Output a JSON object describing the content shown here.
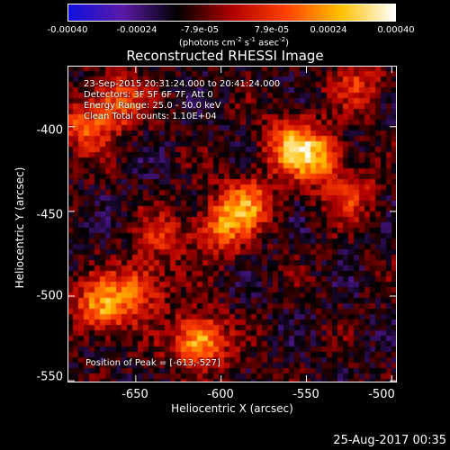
{
  "colorbar": {
    "ticks": [
      "-0.00040",
      "-0.00024",
      "-7.9e-05",
      "7.9e-05",
      "0.00024",
      "0.00040"
    ],
    "unit_text": "(photons cm",
    "unit_exp1": "-2",
    "unit_mid1": " s",
    "unit_exp2": "-1",
    "unit_mid2": " asec",
    "unit_exp3": "-2",
    "unit_end": ")"
  },
  "chart_data": {
    "type": "heatmap",
    "title": "Reconstructed RHESSI Image",
    "xlabel": "Heliocentric X (arcsec)",
    "ylabel": "Heliocentric Y (arcsec)",
    "xlim": [
      -690,
      -497
    ],
    "ylim": [
      -551,
      -364
    ],
    "xticks": [
      -650,
      -600,
      -550,
      -500
    ],
    "yticks": [
      -400,
      -450,
      -500,
      -550
    ],
    "clim": [
      -0.0004,
      0.0004
    ],
    "colormap": [
      "#1010e0",
      "#5a1aa8",
      "#000000",
      "#b00000",
      "#ff4000",
      "#ffc000",
      "#ffffff"
    ],
    "sources": [
      {
        "x": -613,
        "y": -527,
        "strength": 0.0004
      },
      {
        "x": -670,
        "y": -507,
        "strength": 0.00034
      },
      {
        "x": -648,
        "y": -495,
        "strength": 0.00025
      },
      {
        "x": -560,
        "y": -410,
        "strength": 0.00028
      },
      {
        "x": -585,
        "y": -445,
        "strength": 0.0003
      },
      {
        "x": -545,
        "y": -418,
        "strength": 0.00032
      },
      {
        "x": -660,
        "y": -385,
        "strength": 0.00027
      },
      {
        "x": -680,
        "y": -400,
        "strength": 0.00024
      },
      {
        "x": -600,
        "y": -460,
        "strength": 0.00026
      },
      {
        "x": -525,
        "y": -440,
        "strength": 0.0002
      },
      {
        "x": -520,
        "y": -375,
        "strength": 0.00018
      },
      {
        "x": -635,
        "y": -465,
        "strength": 0.00016
      }
    ]
  },
  "info": {
    "time": "23-Sep-2015 20:31:24.000 to 20:41:24.000",
    "detectors": "Detectors: 3F 5F 6F 7F, Att 0",
    "energy": "Energy Range: 25.0 - 50.0 keV",
    "clean": "Clean     Total counts: 1.10E+04",
    "peak": "Position of Peak = [-613,-527]"
  },
  "stamp": "25-Aug-2017 00:35"
}
